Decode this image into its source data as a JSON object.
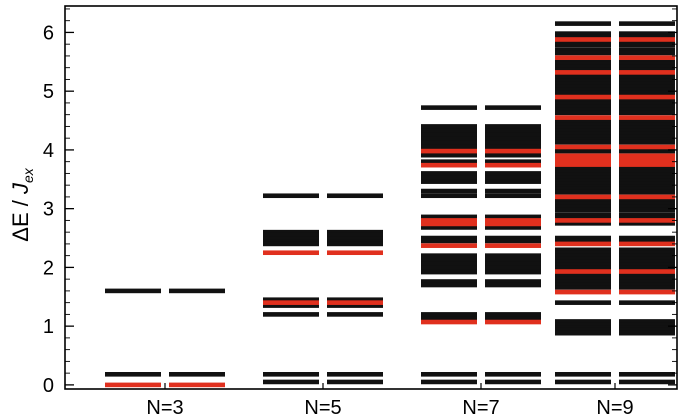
{
  "chart_data": {
    "type": "bar",
    "ylabel": {
      "main": "ΔE / ",
      "italic": "J",
      "sub": "ex"
    },
    "ylim": [
      -0.07,
      6.45
    ],
    "yticks": [
      0,
      1,
      2,
      3,
      4,
      5,
      6
    ],
    "grid": false,
    "colors": {
      "black": "#111111",
      "red": "#e0301e",
      "axis": "#000000"
    },
    "categories": [
      "N=3",
      "N=5",
      "N=7",
      "N=9"
    ],
    "columns": [
      {
        "name": "N=3",
        "levels": [
          {
            "y": 1.6,
            "c": "black"
          },
          {
            "y": 0.18,
            "c": "black"
          },
          {
            "y": 0.0,
            "c": "red"
          }
        ]
      },
      {
        "name": "N=5",
        "levels": [
          {
            "y": 3.22,
            "c": "black"
          },
          {
            "y": 2.6,
            "c": "black"
          },
          {
            "y": 2.56,
            "c": "black"
          },
          {
            "y": 2.52,
            "c": "black"
          },
          {
            "y": 2.48,
            "c": "black"
          },
          {
            "y": 2.44,
            "c": "black"
          },
          {
            "y": 2.4,
            "c": "black"
          },
          {
            "y": 2.25,
            "c": "red"
          },
          {
            "y": 1.45,
            "c": "black"
          },
          {
            "y": 1.4,
            "c": "red"
          },
          {
            "y": 1.35,
            "c": "black"
          },
          {
            "y": 1.2,
            "c": "black"
          },
          {
            "y": 0.18,
            "c": "black"
          },
          {
            "y": 0.05,
            "c": "black"
          }
        ]
      },
      {
        "name": "N=7",
        "levels": [
          {
            "y": 4.72,
            "c": "black"
          },
          {
            "y": 4.4,
            "c": "black"
          },
          {
            "y": 4.33,
            "c": "black"
          },
          {
            "y": 4.26,
            "c": "black"
          },
          {
            "y": 4.19,
            "c": "black"
          },
          {
            "y": 4.12,
            "c": "black"
          },
          {
            "y": 4.05,
            "c": "black"
          },
          {
            "y": 3.98,
            "c": "red"
          },
          {
            "y": 3.91,
            "c": "black"
          },
          {
            "y": 3.8,
            "c": "black"
          },
          {
            "y": 3.74,
            "c": "red"
          },
          {
            "y": 3.6,
            "c": "black"
          },
          {
            "y": 3.53,
            "c": "black"
          },
          {
            "y": 3.46,
            "c": "black"
          },
          {
            "y": 3.3,
            "c": "black"
          },
          {
            "y": 3.22,
            "c": "black"
          },
          {
            "y": 2.86,
            "c": "black"
          },
          {
            "y": 2.8,
            "c": "red"
          },
          {
            "y": 2.74,
            "c": "red"
          },
          {
            "y": 2.68,
            "c": "black"
          },
          {
            "y": 2.5,
            "c": "black"
          },
          {
            "y": 2.45,
            "c": "black"
          },
          {
            "y": 2.37,
            "c": "red"
          },
          {
            "y": 2.2,
            "c": "black"
          },
          {
            "y": 2.13,
            "c": "black"
          },
          {
            "y": 2.06,
            "c": "black"
          },
          {
            "y": 1.99,
            "c": "black"
          },
          {
            "y": 1.92,
            "c": "black"
          },
          {
            "y": 1.76,
            "c": "black"
          },
          {
            "y": 1.7,
            "c": "black"
          },
          {
            "y": 1.2,
            "c": "black"
          },
          {
            "y": 1.13,
            "c": "black"
          },
          {
            "y": 1.07,
            "c": "red"
          },
          {
            "y": 0.18,
            "c": "black"
          },
          {
            "y": 0.05,
            "c": "black"
          }
        ]
      },
      {
        "name": "N=9",
        "levels": [
          {
            "y": 6.15,
            "c": "black"
          },
          {
            "y": 5.98,
            "c": "black"
          },
          {
            "y": 5.93,
            "c": "black"
          },
          {
            "y": 5.88,
            "c": "red"
          },
          {
            "y": 5.83,
            "c": "black"
          },
          {
            "y": 5.78,
            "c": "black"
          },
          {
            "y": 5.7,
            "c": "black"
          },
          {
            "y": 5.65,
            "c": "black"
          },
          {
            "y": 5.57,
            "c": "red"
          },
          {
            "y": 5.52,
            "c": "black"
          },
          {
            "y": 5.47,
            "c": "black"
          },
          {
            "y": 5.42,
            "c": "black"
          },
          {
            "y": 5.37,
            "c": "black"
          },
          {
            "y": 5.32,
            "c": "red"
          },
          {
            "y": 5.27,
            "c": "black"
          },
          {
            "y": 5.22,
            "c": "black"
          },
          {
            "y": 5.17,
            "c": "black"
          },
          {
            "y": 5.12,
            "c": "black"
          },
          {
            "y": 5.07,
            "c": "black"
          },
          {
            "y": 5.02,
            "c": "black"
          },
          {
            "y": 4.97,
            "c": "black"
          },
          {
            "y": 4.9,
            "c": "red"
          },
          {
            "y": 4.83,
            "c": "black"
          },
          {
            "y": 4.78,
            "c": "black"
          },
          {
            "y": 4.73,
            "c": "black"
          },
          {
            "y": 4.68,
            "c": "black"
          },
          {
            "y": 4.63,
            "c": "black"
          },
          {
            "y": 4.55,
            "c": "red"
          },
          {
            "y": 4.48,
            "c": "black"
          },
          {
            "y": 4.43,
            "c": "black"
          },
          {
            "y": 4.38,
            "c": "black"
          },
          {
            "y": 4.33,
            "c": "black"
          },
          {
            "y": 4.28,
            "c": "black"
          },
          {
            "y": 4.23,
            "c": "black"
          },
          {
            "y": 4.18,
            "c": "black"
          },
          {
            "y": 4.13,
            "c": "black"
          },
          {
            "y": 4.05,
            "c": "red"
          },
          {
            "y": 3.98,
            "c": "black"
          },
          {
            "y": 3.9,
            "c": "red"
          },
          {
            "y": 3.85,
            "c": "red"
          },
          {
            "y": 3.8,
            "c": "red"
          },
          {
            "y": 3.75,
            "c": "red"
          },
          {
            "y": 3.68,
            "c": "black"
          },
          {
            "y": 3.63,
            "c": "black"
          },
          {
            "y": 3.58,
            "c": "black"
          },
          {
            "y": 3.53,
            "c": "black"
          },
          {
            "y": 3.48,
            "c": "black"
          },
          {
            "y": 3.43,
            "c": "black"
          },
          {
            "y": 3.38,
            "c": "black"
          },
          {
            "y": 3.33,
            "c": "black"
          },
          {
            "y": 3.28,
            "c": "black"
          },
          {
            "y": 3.2,
            "c": "red"
          },
          {
            "y": 3.13,
            "c": "black"
          },
          {
            "y": 3.08,
            "c": "black"
          },
          {
            "y": 3.03,
            "c": "black"
          },
          {
            "y": 2.98,
            "c": "black"
          },
          {
            "y": 2.9,
            "c": "black"
          },
          {
            "y": 2.85,
            "c": "black"
          },
          {
            "y": 2.8,
            "c": "red"
          },
          {
            "y": 2.75,
            "c": "black"
          },
          {
            "y": 2.5,
            "c": "black"
          },
          {
            "y": 2.45,
            "c": "black"
          },
          {
            "y": 2.4,
            "c": "red"
          },
          {
            "y": 2.3,
            "c": "black"
          },
          {
            "y": 2.25,
            "c": "black"
          },
          {
            "y": 2.2,
            "c": "black"
          },
          {
            "y": 2.15,
            "c": "black"
          },
          {
            "y": 2.1,
            "c": "black"
          },
          {
            "y": 2.05,
            "c": "black"
          },
          {
            "y": 2.0,
            "c": "black"
          },
          {
            "y": 1.93,
            "c": "red"
          },
          {
            "y": 1.86,
            "c": "black"
          },
          {
            "y": 1.81,
            "c": "black"
          },
          {
            "y": 1.76,
            "c": "black"
          },
          {
            "y": 1.71,
            "c": "black"
          },
          {
            "y": 1.66,
            "c": "black"
          },
          {
            "y": 1.58,
            "c": "red"
          },
          {
            "y": 1.4,
            "c": "black"
          },
          {
            "y": 1.08,
            "c": "black"
          },
          {
            "y": 1.03,
            "c": "black"
          },
          {
            "y": 0.98,
            "c": "black"
          },
          {
            "y": 0.93,
            "c": "black"
          },
          {
            "y": 0.88,
            "c": "black"
          },
          {
            "y": 0.18,
            "c": "black"
          },
          {
            "y": 0.05,
            "c": "black"
          }
        ]
      }
    ]
  }
}
